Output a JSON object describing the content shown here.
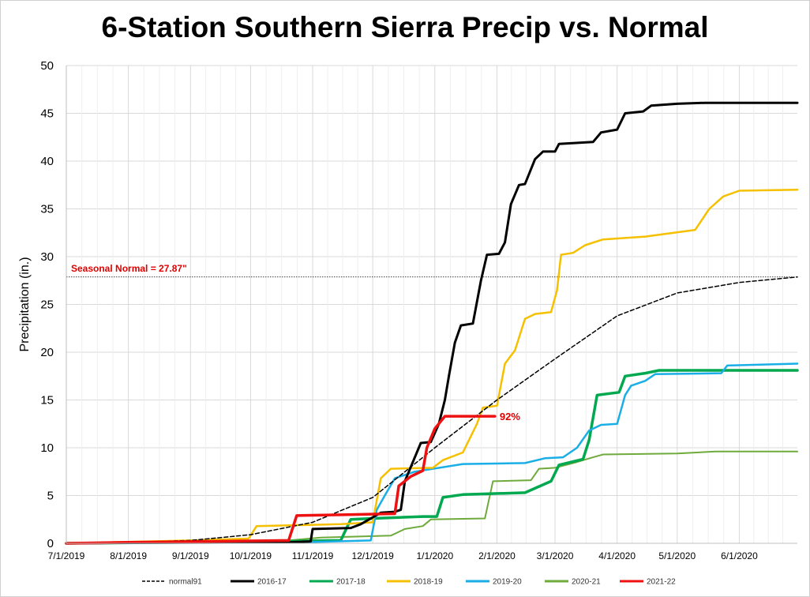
{
  "chart_data": {
    "type": "line",
    "title": "6-Station Southern Sierra Precip vs. Normal",
    "xlabel": "",
    "ylabel": "Precipitation (in.)",
    "ylim": [
      0,
      50
    ],
    "yticks": [
      0,
      5,
      10,
      15,
      20,
      25,
      30,
      35,
      40,
      45,
      50
    ],
    "xlim": [
      "2019-07-01",
      "2020-06-30"
    ],
    "xtick_labels": [
      "7/1/2019",
      "8/1/2019",
      "9/1/2019",
      "10/1/2019",
      "11/1/2019",
      "12/1/2019",
      "1/1/2020",
      "2/1/2020",
      "3/1/2020",
      "4/1/2020",
      "5/1/2020",
      "6/1/2020"
    ],
    "xtick_dates": [
      "2019-07-01",
      "2019-08-01",
      "2019-09-01",
      "2019-10-01",
      "2019-11-01",
      "2019-12-01",
      "2020-01-01",
      "2020-02-01",
      "2020-03-01",
      "2020-04-01",
      "2020-05-01",
      "2020-06-01"
    ],
    "grid": true,
    "legend_position": "bottom",
    "reference_line": {
      "value": 27.87,
      "label": "Seasonal Normal = 27.87\"",
      "color": "#e00000"
    },
    "annotations": [
      {
        "text": "92%",
        "x": "2020-01-31",
        "y": 13.3,
        "color": "#e00000"
      }
    ],
    "series": [
      {
        "name": "normal91",
        "color": "#000000",
        "style": "dashed",
        "points": [
          [
            "2019-07-01",
            0
          ],
          [
            "2019-08-01",
            0.1
          ],
          [
            "2019-09-01",
            0.3
          ],
          [
            "2019-10-01",
            0.9
          ],
          [
            "2019-11-01",
            2.2
          ],
          [
            "2019-12-01",
            4.8
          ],
          [
            "2020-01-01",
            10.0
          ],
          [
            "2020-02-01",
            15.0
          ],
          [
            "2020-03-01",
            19.3
          ],
          [
            "2020-04-01",
            23.8
          ],
          [
            "2020-05-01",
            26.2
          ],
          [
            "2020-06-01",
            27.3
          ],
          [
            "2020-06-30",
            27.87
          ]
        ]
      },
      {
        "name": "2016-17",
        "color": "#000000",
        "style": "solid",
        "points": [
          [
            "2019-07-01",
            0
          ],
          [
            "2019-08-01",
            0.05
          ],
          [
            "2019-10-20",
            0.1
          ],
          [
            "2019-10-31",
            0.2
          ],
          [
            "2019-11-01",
            1.5
          ],
          [
            "2019-11-20",
            1.6
          ],
          [
            "2019-11-25",
            2.0
          ],
          [
            "2019-12-05",
            3.2
          ],
          [
            "2019-12-12",
            3.3
          ],
          [
            "2019-12-15",
            3.5
          ],
          [
            "2019-12-17",
            6.5
          ],
          [
            "2019-12-20",
            8.0
          ],
          [
            "2019-12-25",
            10.5
          ],
          [
            "2019-12-30",
            10.6
          ],
          [
            "2020-01-03",
            12.5
          ],
          [
            "2020-01-06",
            15.0
          ],
          [
            "2020-01-08",
            17.5
          ],
          [
            "2020-01-11",
            21.0
          ],
          [
            "2020-01-14",
            22.8
          ],
          [
            "2020-01-20",
            23.0
          ],
          [
            "2020-01-24",
            27.5
          ],
          [
            "2020-01-27",
            30.2
          ],
          [
            "2020-02-02",
            30.3
          ],
          [
            "2020-02-05",
            31.5
          ],
          [
            "2020-02-08",
            35.5
          ],
          [
            "2020-02-12",
            37.5
          ],
          [
            "2020-02-15",
            37.6
          ],
          [
            "2020-02-20",
            40.2
          ],
          [
            "2020-02-24",
            41.0
          ],
          [
            "2020-03-01",
            41.0
          ],
          [
            "2020-03-03",
            41.8
          ],
          [
            "2020-03-20",
            42.0
          ],
          [
            "2020-03-24",
            43.0
          ],
          [
            "2020-04-01",
            43.3
          ],
          [
            "2020-04-05",
            45.0
          ],
          [
            "2020-04-14",
            45.2
          ],
          [
            "2020-04-18",
            45.8
          ],
          [
            "2020-05-01",
            46.0
          ],
          [
            "2020-05-15",
            46.1
          ],
          [
            "2020-06-30",
            46.1
          ]
        ]
      },
      {
        "name": "2017-18",
        "color": "#00a94f",
        "style": "solid",
        "points": [
          [
            "2019-07-01",
            0
          ],
          [
            "2019-10-15",
            0.2
          ],
          [
            "2019-11-15",
            0.3
          ],
          [
            "2019-11-20",
            2.5
          ],
          [
            "2019-12-01",
            2.6
          ],
          [
            "2019-12-26",
            2.8
          ],
          [
            "2020-01-02",
            2.8
          ],
          [
            "2020-01-05",
            4.8
          ],
          [
            "2020-01-15",
            5.1
          ],
          [
            "2020-02-15",
            5.3
          ],
          [
            "2020-02-28",
            6.5
          ],
          [
            "2020-03-03",
            8.2
          ],
          [
            "2020-03-15",
            8.8
          ],
          [
            "2020-03-18",
            10.8
          ],
          [
            "2020-03-22",
            15.5
          ],
          [
            "2020-04-02",
            15.8
          ],
          [
            "2020-04-05",
            17.5
          ],
          [
            "2020-04-15",
            17.8
          ],
          [
            "2020-04-22",
            18.1
          ],
          [
            "2020-06-30",
            18.1
          ]
        ]
      },
      {
        "name": "2018-19",
        "color": "#f5c000",
        "style": "solid",
        "points": [
          [
            "2019-07-01",
            0
          ],
          [
            "2019-09-01",
            0.3
          ],
          [
            "2019-09-30",
            0.5
          ],
          [
            "2019-10-04",
            1.8
          ],
          [
            "2019-11-15",
            2.0
          ],
          [
            "2019-12-01",
            2.2
          ],
          [
            "2019-12-05",
            6.8
          ],
          [
            "2019-12-10",
            7.8
          ],
          [
            "2019-12-31",
            7.9
          ],
          [
            "2020-01-05",
            8.7
          ],
          [
            "2020-01-15",
            9.5
          ],
          [
            "2020-01-22",
            12.5
          ],
          [
            "2020-01-25",
            14.2
          ],
          [
            "2020-02-01",
            14.4
          ],
          [
            "2020-02-05",
            18.8
          ],
          [
            "2020-02-10",
            20.2
          ],
          [
            "2020-02-15",
            23.5
          ],
          [
            "2020-02-20",
            24.0
          ],
          [
            "2020-02-28",
            24.2
          ],
          [
            "2020-03-02",
            26.5
          ],
          [
            "2020-03-04",
            30.2
          ],
          [
            "2020-03-10",
            30.4
          ],
          [
            "2020-03-16",
            31.2
          ],
          [
            "2020-03-25",
            31.8
          ],
          [
            "2020-04-15",
            32.1
          ],
          [
            "2020-05-10",
            32.8
          ],
          [
            "2020-05-17",
            35.0
          ],
          [
            "2020-05-24",
            36.3
          ],
          [
            "2020-06-01",
            36.9
          ],
          [
            "2020-06-30",
            37.0
          ]
        ]
      },
      {
        "name": "2019-20",
        "color": "#1aaee6",
        "style": "solid",
        "points": [
          [
            "2019-07-01",
            0
          ],
          [
            "2019-10-26",
            0.1
          ],
          [
            "2019-11-30",
            0.3
          ],
          [
            "2019-12-03",
            3.5
          ],
          [
            "2019-12-07",
            5.0
          ],
          [
            "2019-12-12",
            6.8
          ],
          [
            "2019-12-22",
            7.5
          ],
          [
            "2020-01-15",
            8.3
          ],
          [
            "2020-02-15",
            8.4
          ],
          [
            "2020-02-25",
            8.9
          ],
          [
            "2020-03-05",
            9.0
          ],
          [
            "2020-03-12",
            10.0
          ],
          [
            "2020-03-18",
            11.8
          ],
          [
            "2020-03-24",
            12.4
          ],
          [
            "2020-04-01",
            12.5
          ],
          [
            "2020-04-05",
            15.5
          ],
          [
            "2020-04-08",
            16.5
          ],
          [
            "2020-04-15",
            17.0
          ],
          [
            "2020-04-20",
            17.7
          ],
          [
            "2020-05-23",
            17.8
          ],
          [
            "2020-05-26",
            18.6
          ],
          [
            "2020-06-30",
            18.8
          ]
        ]
      },
      {
        "name": "2020-21",
        "color": "#6eaa3c",
        "style": "solid",
        "points": [
          [
            "2019-07-01",
            0
          ],
          [
            "2019-10-15",
            0.2
          ],
          [
            "2019-11-05",
            0.6
          ],
          [
            "2019-12-10",
            0.8
          ],
          [
            "2019-12-17",
            1.5
          ],
          [
            "2019-12-26",
            1.8
          ],
          [
            "2019-12-30",
            2.5
          ],
          [
            "2020-01-26",
            2.6
          ],
          [
            "2020-01-30",
            6.5
          ],
          [
            "2020-02-18",
            6.6
          ],
          [
            "2020-02-22",
            7.8
          ],
          [
            "2020-03-01",
            7.9
          ],
          [
            "2020-03-12",
            8.5
          ],
          [
            "2020-03-20",
            9.0
          ],
          [
            "2020-03-25",
            9.3
          ],
          [
            "2020-05-01",
            9.4
          ],
          [
            "2020-05-20",
            9.6
          ],
          [
            "2020-06-30",
            9.6
          ]
        ]
      },
      {
        "name": "2021-22",
        "color": "#ee1111",
        "style": "solid",
        "points": [
          [
            "2019-07-01",
            0
          ],
          [
            "2019-08-01",
            0.1
          ],
          [
            "2019-10-20",
            0.3
          ],
          [
            "2019-10-24",
            2.9
          ],
          [
            "2019-11-18",
            3.0
          ],
          [
            "2019-12-12",
            3.1
          ],
          [
            "2019-12-14",
            6.0
          ],
          [
            "2019-12-20",
            7.0
          ],
          [
            "2019-12-26",
            7.6
          ],
          [
            "2019-12-28",
            10.0
          ],
          [
            "2020-01-01",
            12.0
          ],
          [
            "2020-01-06",
            13.3
          ],
          [
            "2020-01-31",
            13.3
          ]
        ]
      }
    ]
  }
}
